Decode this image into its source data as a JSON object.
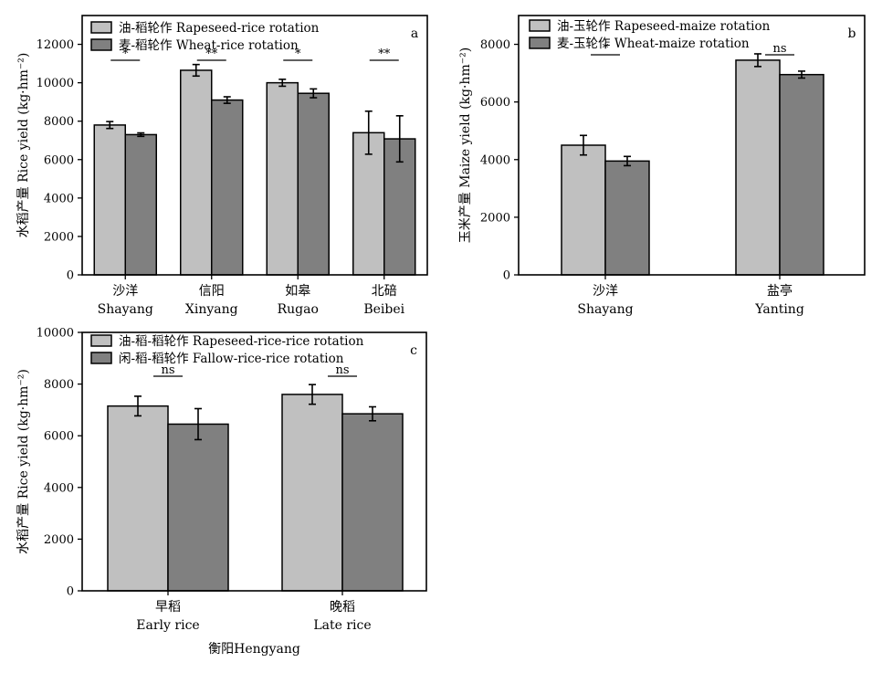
{
  "colors": {
    "series1": "#c0c0c0",
    "series2": "#808080",
    "axis": "#000000"
  },
  "chart_data": [
    {
      "panel": "a",
      "type": "bar",
      "ylabel": "水稻产量 Rice yield (kg·hm⁻²)",
      "ylim": [
        0,
        13500
      ],
      "yticks": [
        0,
        2000,
        4000,
        6000,
        8000,
        10000,
        12000
      ],
      "categories": [
        {
          "cn": "沙洋",
          "en": "Shayang"
        },
        {
          "cn": "信阳",
          "en": "Xinyang"
        },
        {
          "cn": "如皋",
          "en": "Rugao"
        },
        {
          "cn": "北碚",
          "en": "Beibei"
        }
      ],
      "series": [
        {
          "name": "油-稻轮作 Rapeseed-rice rotation",
          "values": [
            7800,
            10650,
            10000,
            7400
          ],
          "errors": [
            180,
            300,
            180,
            1120
          ]
        },
        {
          "name": "麦-稻轮作 Wheat-rice rotation",
          "values": [
            7300,
            9100,
            9450,
            7080
          ],
          "errors": [
            90,
            170,
            230,
            1200
          ]
        }
      ],
      "significance": [
        "*",
        "**",
        "*",
        "**"
      ],
      "legend_position": "top-left"
    },
    {
      "panel": "b",
      "type": "bar",
      "ylabel": "玉米产量 Maize yield (kg·hm⁻²)",
      "ylim": [
        0,
        9000
      ],
      "yticks": [
        0,
        2000,
        4000,
        6000,
        8000
      ],
      "categories": [
        {
          "cn": "沙洋",
          "en": "Shayang"
        },
        {
          "cn": "盐亭",
          "en": "Yanting"
        }
      ],
      "series": [
        {
          "name": "油-玉轮作 Rapeseed-maize rotation",
          "values": [
            4500,
            7450
          ],
          "errors": [
            340,
            220
          ]
        },
        {
          "name": "麦-玉轮作 Wheat-maize rotation",
          "values": [
            3950,
            6950
          ],
          "errors": [
            160,
            120
          ]
        }
      ],
      "significance": [
        "*",
        "ns"
      ],
      "legend_position": "top-left"
    },
    {
      "panel": "c",
      "type": "bar",
      "ylabel": "水稻产量 Rice yield (kg·hm⁻²)",
      "xlabel": "衡阳Hengyang",
      "ylim": [
        0,
        10000
      ],
      "yticks": [
        0,
        2000,
        4000,
        6000,
        8000,
        10000
      ],
      "categories": [
        {
          "cn": "早稻",
          "en": "Early rice"
        },
        {
          "cn": "晚稻",
          "en": "Late rice"
        }
      ],
      "series": [
        {
          "name": "油-稻-稻轮作 Rapeseed-rice-rice rotation",
          "values": [
            7150,
            7600
          ],
          "errors": [
            380,
            380
          ]
        },
        {
          "name": "闲-稻-稻轮作 Fallow-rice-rice rotation",
          "values": [
            6450,
            6850
          ],
          "errors": [
            600,
            270
          ]
        }
      ],
      "significance": [
        "ns",
        "ns"
      ],
      "legend_position": "top-left"
    }
  ]
}
